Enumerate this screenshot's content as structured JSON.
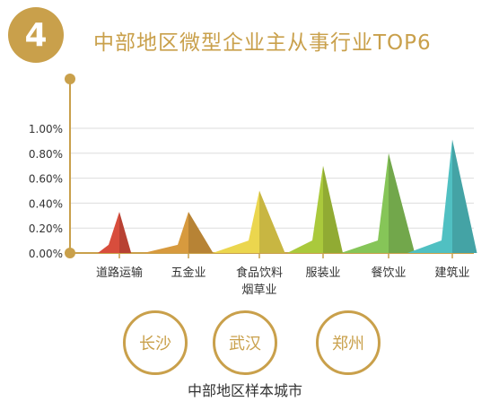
{
  "header": {
    "number": "4",
    "title": "中部地区微型企业主从事行业TOP6"
  },
  "chart_data": {
    "type": "area",
    "categories": [
      "道路运输",
      "五金业",
      "食品饮料烟草业",
      "服装业",
      "餐饮业",
      "建筑业"
    ],
    "category_lines": [
      [
        "道路运输"
      ],
      [
        "五金业"
      ],
      [
        "食品饮料",
        "烟草业"
      ],
      [
        "服装业"
      ],
      [
        "餐饮业"
      ],
      [
        "建筑业"
      ]
    ],
    "values": [
      0.33,
      0.33,
      0.5,
      0.7,
      0.8,
      0.91
    ],
    "y_ticks": [
      "0.00%",
      "0.20%",
      "0.40%",
      "0.60%",
      "0.80%",
      "1.00%"
    ],
    "ylim": [
      0,
      1.0
    ],
    "grid": true,
    "colors": [
      "#d84d3c",
      "#d79a3e",
      "#ebd64e",
      "#aac93c",
      "#86c558",
      "#50c0c2"
    ]
  },
  "cities": {
    "items": [
      "长沙",
      "武汉",
      "郑州"
    ],
    "caption": "中部地区样本城市"
  }
}
